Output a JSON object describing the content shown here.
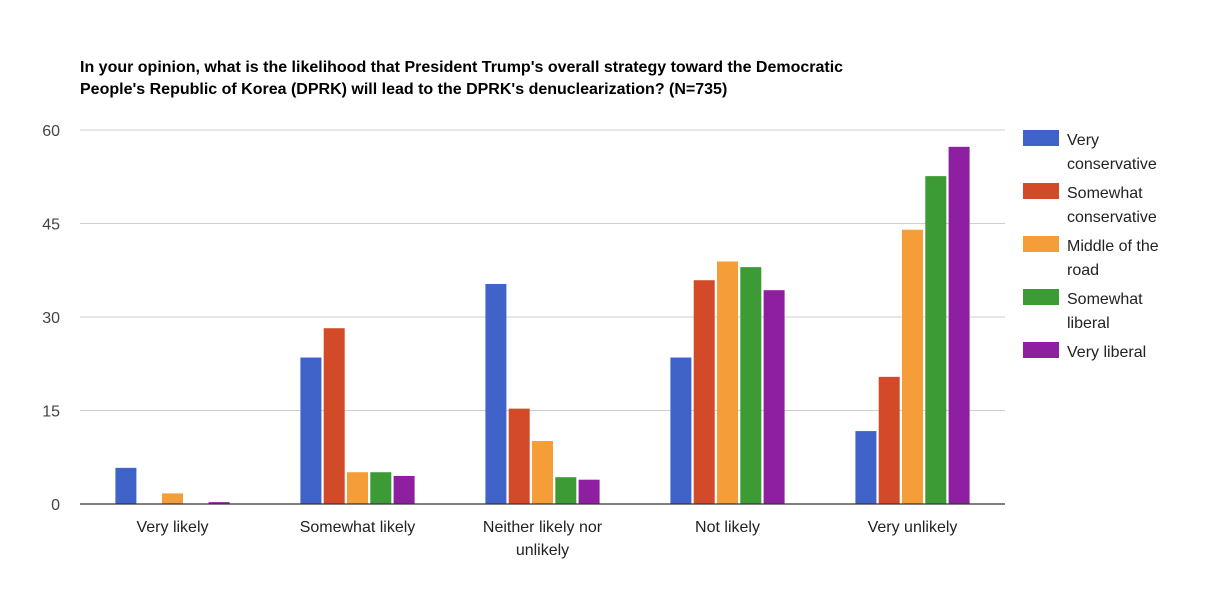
{
  "chart_data": {
    "type": "bar",
    "title_lines": [
      "In your opinion, what is the likelihood that President Trump's overall strategy toward the Democratic",
      "People's Republic of Korea (DPRK) will lead to the DPRK's denuclearization? (N=735)"
    ],
    "categories": [
      [
        "Very likely"
      ],
      [
        "Somewhat likely"
      ],
      [
        "Neither likely nor",
        "unlikely"
      ],
      [
        "Not likely"
      ],
      [
        "Very unlikely"
      ]
    ],
    "ylim": [
      0,
      60
    ],
    "yticks": [
      "0",
      "15",
      "30",
      "45",
      "60"
    ],
    "grid": true,
    "legend_position": "right",
    "series": [
      {
        "name": "Very conservative",
        "legend_lines": [
          "Very",
          "conservative"
        ],
        "color": "#3f63c9",
        "values": [
          5.8,
          23.5,
          35.3,
          23.5,
          11.7
        ]
      },
      {
        "name": "Somewhat conservative",
        "legend_lines": [
          "Somewhat",
          "conservative"
        ],
        "color": "#d24a28",
        "values": [
          0,
          28.2,
          15.3,
          35.9,
          20.4
        ]
      },
      {
        "name": "Middle of the road",
        "legend_lines": [
          "Middle of the",
          "road"
        ],
        "color": "#f59d38",
        "values": [
          1.7,
          5.1,
          10.1,
          38.9,
          44.0
        ]
      },
      {
        "name": "Somewhat liberal",
        "legend_lines": [
          "Somewhat",
          "liberal"
        ],
        "color": "#3d9b35",
        "values": [
          0,
          5.1,
          4.3,
          38.0,
          52.6
        ]
      },
      {
        "name": "Very liberal",
        "legend_lines": [
          "Very liberal"
        ],
        "color": "#8e1fa0",
        "values": [
          0.3,
          4.5,
          3.9,
          34.3,
          57.3
        ]
      }
    ]
  }
}
